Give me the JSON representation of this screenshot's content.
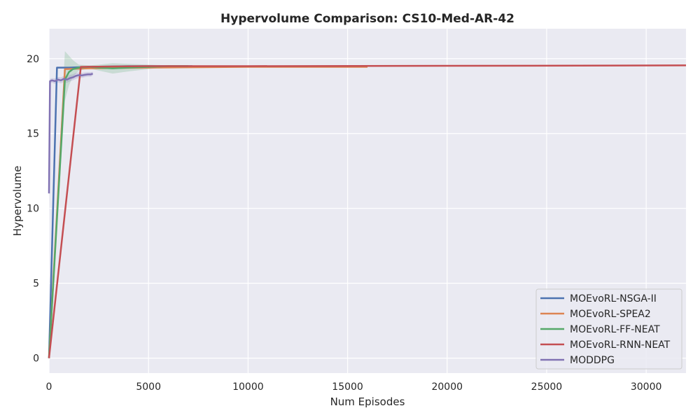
{
  "chart_data": {
    "type": "line",
    "title": "Hypervolume Comparison: CS10-Med-AR-42",
    "xlabel": "Num Episodes",
    "ylabel": "Hypervolume",
    "xlim": [
      0,
      32000
    ],
    "ylim": [
      -1,
      22
    ],
    "xticks": [
      0,
      5000,
      10000,
      15000,
      20000,
      25000,
      30000
    ],
    "xtick_labels": [
      "0",
      "5000",
      "10000",
      "15000",
      "20000",
      "25000",
      "30000"
    ],
    "yticks": [
      0,
      5,
      10,
      15,
      20
    ],
    "ytick_labels": [
      "0",
      "5",
      "10",
      "15",
      "20"
    ],
    "grid": true,
    "legend_position": "lower-right",
    "background": "#EAEAF2",
    "series": [
      {
        "name": "MOEvoRL-NSGA-II",
        "color": "#4C72B0",
        "x": [
          0,
          400,
          1000,
          2000,
          4000,
          7200
        ],
        "y": [
          0,
          19.4,
          19.4,
          19.45,
          19.5,
          19.5
        ],
        "band": null
      },
      {
        "name": "MOEvoRL-SPEA2",
        "color": "#DD8452",
        "x": [
          0,
          800,
          2000,
          5000,
          10000,
          16000
        ],
        "y": [
          0,
          19.3,
          19.35,
          19.4,
          19.45,
          19.45
        ],
        "band": null
      },
      {
        "name": "MOEvoRL-FF-NEAT",
        "color": "#55A868",
        "x": [
          0,
          800,
          1000,
          1200,
          1500,
          2000,
          2500,
          3200,
          4000,
          5000,
          6000,
          7000
        ],
        "y": [
          0,
          18.6,
          19.1,
          19.3,
          19.4,
          19.45,
          19.4,
          19.35,
          19.4,
          19.45,
          19.5,
          19.5
        ],
        "band": {
          "upper": [
            0.4,
            20.5,
            20.2,
            19.9,
            19.6,
            19.55,
            19.6,
            19.7,
            19.65,
            19.6,
            19.55,
            19.55
          ],
          "lower": [
            0,
            17.2,
            18.2,
            18.8,
            19.2,
            19.35,
            19.2,
            19.0,
            19.15,
            19.3,
            19.45,
            19.45
          ]
        }
      },
      {
        "name": "MOEvoRL-RNN-NEAT",
        "color": "#C44E52",
        "x": [
          0,
          1600,
          5000,
          10000,
          20000,
          32000
        ],
        "y": [
          0,
          19.45,
          19.5,
          19.5,
          19.52,
          19.55
        ],
        "band": null
      },
      {
        "name": "MODDPG",
        "color": "#8172B3",
        "x": [
          0,
          50,
          150,
          300,
          450,
          600,
          750,
          900,
          1050,
          1200,
          1350,
          1500,
          1650,
          1800,
          1950,
          2100,
          2200
        ],
        "y": [
          11,
          18.5,
          18.55,
          18.5,
          18.6,
          18.55,
          18.65,
          18.6,
          18.7,
          18.75,
          18.85,
          18.9,
          18.88,
          18.92,
          18.95,
          18.95,
          19.0
        ],
        "band": {
          "upper": [
            13,
            18.65,
            18.7,
            18.68,
            18.78,
            18.75,
            18.85,
            18.82,
            18.92,
            18.95,
            19.05,
            19.08,
            19.05,
            19.08,
            19.1,
            19.1,
            19.12
          ],
          "lower": [
            9,
            18.35,
            18.4,
            18.32,
            18.42,
            18.35,
            18.45,
            18.38,
            18.48,
            18.55,
            18.65,
            18.72,
            18.71,
            18.76,
            18.8,
            18.8,
            18.88
          ]
        }
      }
    ]
  }
}
